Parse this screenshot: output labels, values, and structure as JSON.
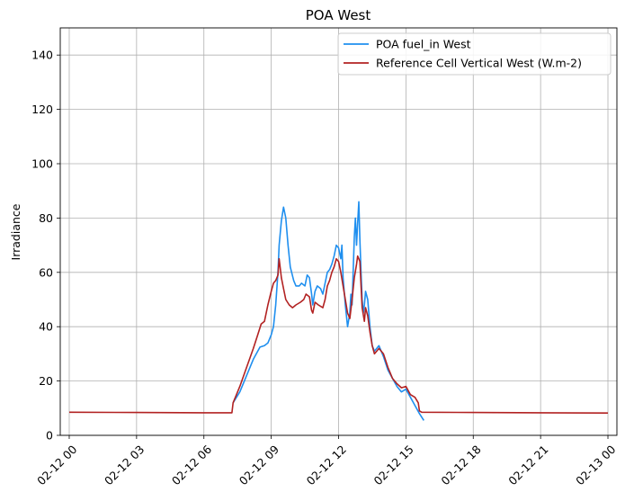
{
  "chart_data": {
    "type": "line",
    "title": "POA West",
    "xlabel": "",
    "ylabel": "Irradiance",
    "xlim": [
      -0.4,
      24.4
    ],
    "ylim": [
      0,
      150
    ],
    "x_unit": "hours after 02-12 00:00",
    "x_ticks": [
      0,
      3,
      6,
      9,
      12,
      15,
      18,
      21,
      24
    ],
    "x_tick_labels": [
      "02-12 00",
      "02-12 03",
      "02-12 06",
      "02-12 09",
      "02-12 12",
      "02-12 15",
      "02-12 18",
      "02-12 21",
      "02-13 00"
    ],
    "y_ticks": [
      0,
      20,
      40,
      60,
      80,
      100,
      120,
      140
    ],
    "y_tick_labels": [
      "0",
      "20",
      "40",
      "60",
      "80",
      "100",
      "120",
      "140"
    ],
    "grid": true,
    "legend_position": "top-right",
    "series": [
      {
        "name": "POA fuel_in West",
        "color": "#1f8fef",
        "points": [
          [
            7.3,
            12
          ],
          [
            7.6,
            16
          ],
          [
            7.9,
            22
          ],
          [
            8.2,
            28
          ],
          [
            8.5,
            32.5
          ],
          [
            8.7,
            33
          ],
          [
            8.85,
            34
          ],
          [
            9.0,
            37
          ],
          [
            9.1,
            40
          ],
          [
            9.2,
            48
          ],
          [
            9.3,
            60
          ],
          [
            9.35,
            70
          ],
          [
            9.45,
            79
          ],
          [
            9.55,
            84
          ],
          [
            9.65,
            80
          ],
          [
            9.75,
            70
          ],
          [
            9.85,
            62
          ],
          [
            10.0,
            57
          ],
          [
            10.1,
            55
          ],
          [
            10.25,
            55
          ],
          [
            10.35,
            56
          ],
          [
            10.5,
            55
          ],
          [
            10.6,
            59
          ],
          [
            10.7,
            58
          ],
          [
            10.8,
            52
          ],
          [
            10.85,
            48
          ],
          [
            10.95,
            53
          ],
          [
            11.05,
            55
          ],
          [
            11.2,
            54
          ],
          [
            11.3,
            52
          ],
          [
            11.4,
            56
          ],
          [
            11.5,
            60
          ],
          [
            11.6,
            61
          ],
          [
            11.7,
            63
          ],
          [
            11.8,
            66
          ],
          [
            11.9,
            70
          ],
          [
            12.0,
            69
          ],
          [
            12.1,
            65
          ],
          [
            12.15,
            70
          ],
          [
            12.2,
            58
          ],
          [
            12.3,
            48
          ],
          [
            12.4,
            40
          ],
          [
            12.5,
            45
          ],
          [
            12.55,
            52
          ],
          [
            12.6,
            48
          ],
          [
            12.65,
            60
          ],
          [
            12.7,
            73
          ],
          [
            12.75,
            80
          ],
          [
            12.8,
            70
          ],
          [
            12.85,
            78
          ],
          [
            12.9,
            86
          ],
          [
            12.95,
            72
          ],
          [
            13.0,
            60
          ],
          [
            13.05,
            50
          ],
          [
            13.1,
            45
          ],
          [
            13.15,
            48
          ],
          [
            13.2,
            53
          ],
          [
            13.3,
            50
          ],
          [
            13.4,
            40
          ],
          [
            13.5,
            33
          ],
          [
            13.6,
            31
          ],
          [
            13.7,
            32
          ],
          [
            13.8,
            33
          ],
          [
            14.0,
            29
          ],
          [
            14.2,
            24
          ],
          [
            14.4,
            21
          ],
          [
            14.6,
            18
          ],
          [
            14.8,
            16
          ],
          [
            15.0,
            17
          ],
          [
            15.2,
            14
          ],
          [
            15.4,
            11
          ],
          [
            15.6,
            8
          ],
          [
            15.8,
            5.5
          ]
        ]
      },
      {
        "name": "Reference Cell Vertical West (W.m-2)",
        "color": "#b22222",
        "points": [
          [
            0,
            8.5
          ],
          [
            3,
            8.4
          ],
          [
            6,
            8.3
          ],
          [
            7.25,
            8.3
          ],
          [
            7.3,
            12
          ],
          [
            7.6,
            18
          ],
          [
            7.9,
            25
          ],
          [
            8.2,
            32
          ],
          [
            8.4,
            37
          ],
          [
            8.55,
            41
          ],
          [
            8.7,
            42
          ],
          [
            8.85,
            48
          ],
          [
            9.0,
            53
          ],
          [
            9.1,
            56
          ],
          [
            9.2,
            57
          ],
          [
            9.3,
            59
          ],
          [
            9.35,
            65
          ],
          [
            9.45,
            58
          ],
          [
            9.55,
            54
          ],
          [
            9.65,
            50
          ],
          [
            9.8,
            48
          ],
          [
            9.95,
            47
          ],
          [
            10.1,
            48
          ],
          [
            10.3,
            49
          ],
          [
            10.45,
            50
          ],
          [
            10.55,
            52
          ],
          [
            10.7,
            51
          ],
          [
            10.8,
            46
          ],
          [
            10.85,
            45
          ],
          [
            10.95,
            49
          ],
          [
            11.1,
            48
          ],
          [
            11.3,
            47
          ],
          [
            11.4,
            50
          ],
          [
            11.5,
            55
          ],
          [
            11.6,
            57
          ],
          [
            11.7,
            60
          ],
          [
            11.8,
            62
          ],
          [
            11.9,
            65
          ],
          [
            12.0,
            64
          ],
          [
            12.1,
            60
          ],
          [
            12.2,
            55
          ],
          [
            12.3,
            50
          ],
          [
            12.4,
            45
          ],
          [
            12.5,
            43
          ],
          [
            12.6,
            50
          ],
          [
            12.7,
            58
          ],
          [
            12.8,
            63
          ],
          [
            12.85,
            66
          ],
          [
            12.95,
            64
          ],
          [
            13.0,
            55
          ],
          [
            13.05,
            47
          ],
          [
            13.15,
            42
          ],
          [
            13.2,
            47
          ],
          [
            13.3,
            44
          ],
          [
            13.4,
            38
          ],
          [
            13.5,
            33
          ],
          [
            13.6,
            30
          ],
          [
            13.7,
            31
          ],
          [
            13.8,
            32
          ],
          [
            14.0,
            30
          ],
          [
            14.2,
            25
          ],
          [
            14.4,
            21
          ],
          [
            14.6,
            19
          ],
          [
            14.8,
            17.5
          ],
          [
            15.0,
            18
          ],
          [
            15.2,
            15
          ],
          [
            15.4,
            14
          ],
          [
            15.55,
            12
          ],
          [
            15.6,
            9
          ],
          [
            15.7,
            8.5
          ],
          [
            18,
            8.4
          ],
          [
            21,
            8.3
          ],
          [
            24,
            8.2
          ]
        ]
      }
    ]
  }
}
